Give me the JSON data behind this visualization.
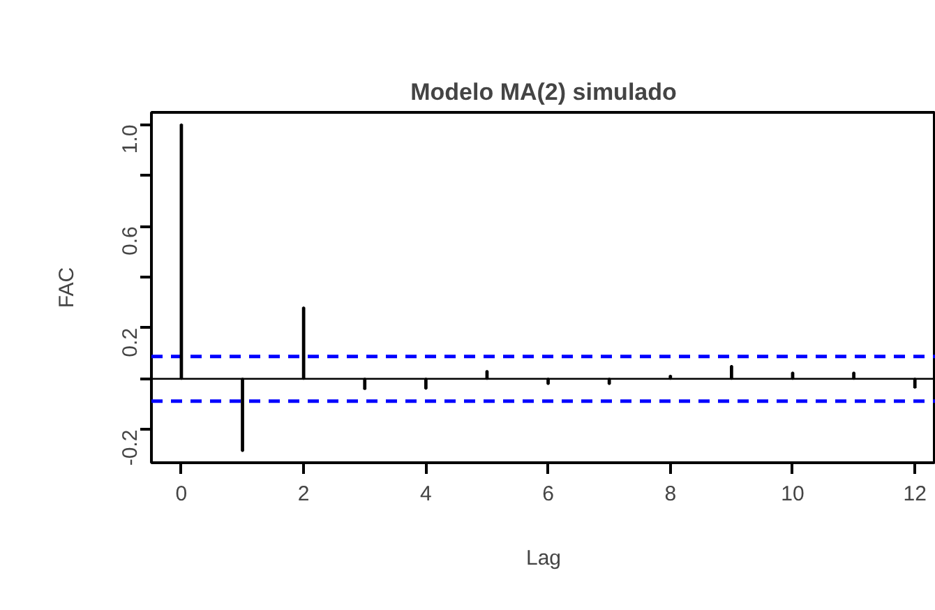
{
  "chart_data": {
    "type": "bar",
    "title": "Modelo MA(2) simulado",
    "xlabel": "Lag",
    "ylabel": "FAC",
    "x": [
      0,
      1,
      2,
      3,
      4,
      5,
      6,
      7,
      8,
      9,
      10,
      11,
      12
    ],
    "values": [
      1.0,
      -0.283,
      0.28,
      -0.04,
      -0.038,
      0.03,
      -0.02,
      -0.02,
      0.012,
      0.05,
      0.024,
      0.024,
      -0.034
    ],
    "color": "#000000",
    "xlim": [
      -0.49,
      12.34
    ],
    "xticks": [
      0,
      2,
      4,
      6,
      8,
      10,
      12
    ],
    "ylim": [
      -0.33,
      1.048
    ],
    "yticks": [
      {
        "value": -0.2,
        "label": "-0.2"
      },
      {
        "value": 0,
        "label": null
      },
      {
        "value": 0.2,
        "label": "0.2"
      },
      {
        "value": 0.4,
        "label": null
      },
      {
        "value": 0.6,
        "label": "0.6"
      },
      {
        "value": 0.8,
        "label": null
      },
      {
        "value": 1.0,
        "label": "1.0"
      }
    ],
    "ref_lines": [
      {
        "axis": "y",
        "value": 0,
        "color": "#000000",
        "line_style": "solid"
      },
      {
        "axis": "y",
        "value": 0.088,
        "color": "#0000ff",
        "line_style": "dashed"
      },
      {
        "axis": "y",
        "value": -0.088,
        "color": "#0000ff",
        "line_style": "dashed"
      }
    ],
    "grid": false
  }
}
